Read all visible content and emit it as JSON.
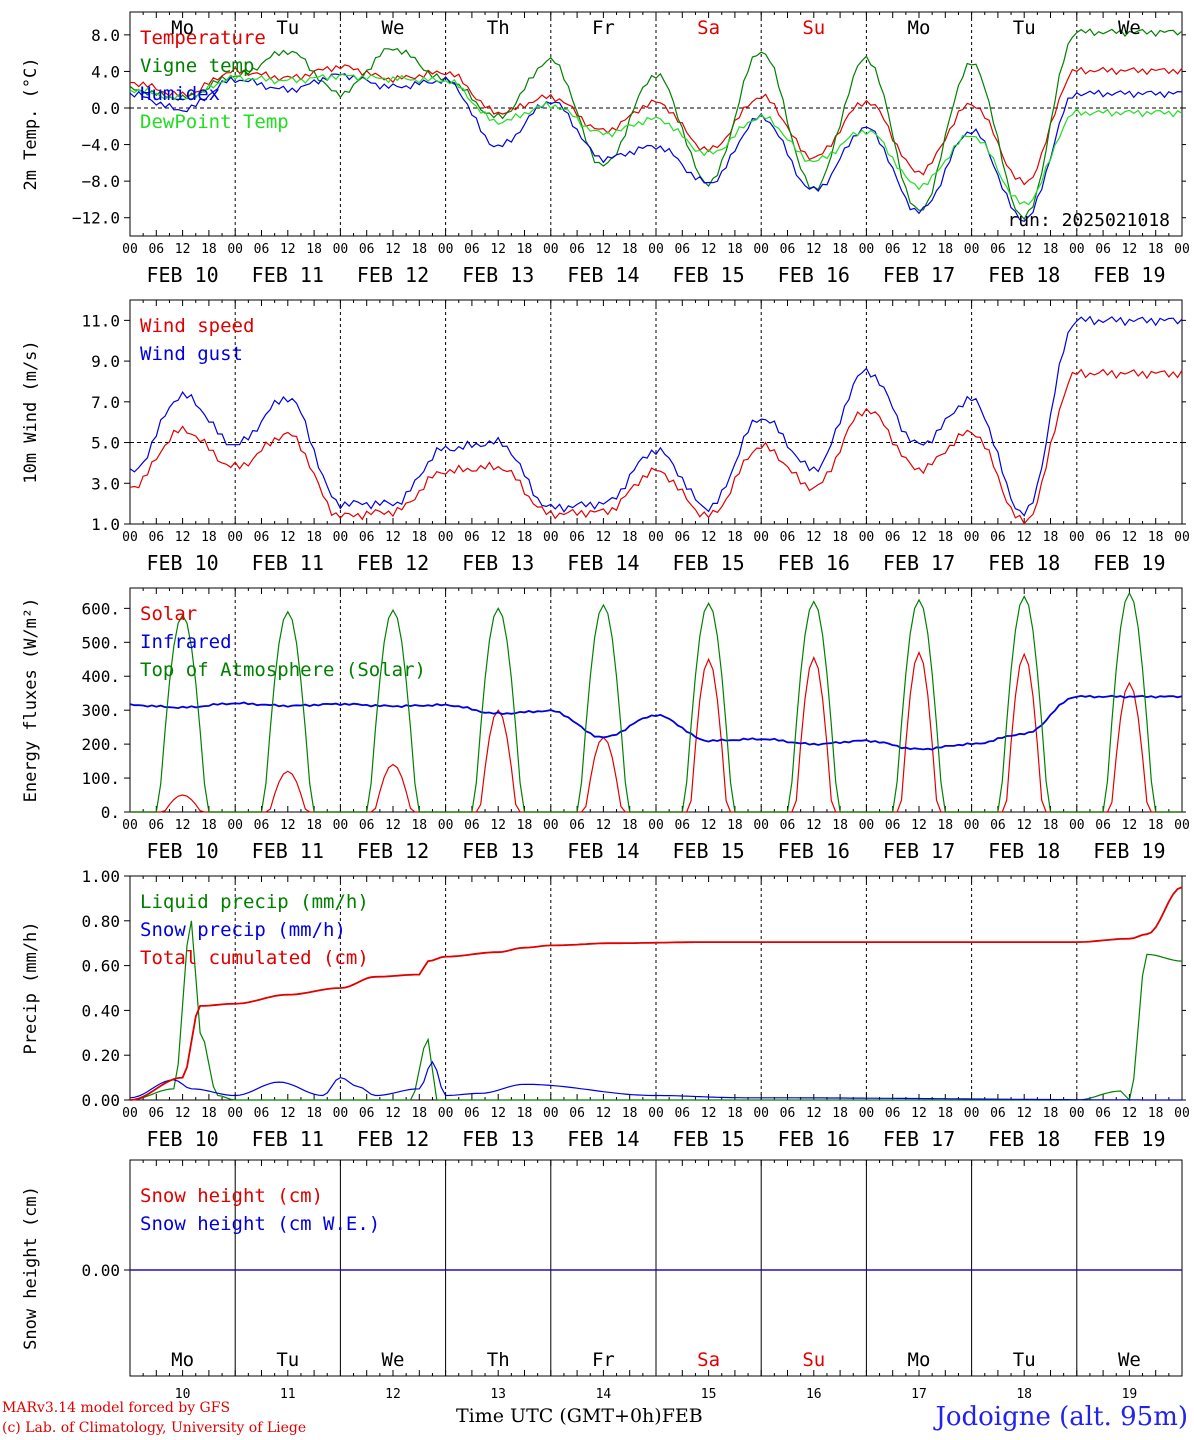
{
  "colors": {
    "red": "#e00000",
    "green": "#008000",
    "blue": "#0000e0",
    "lightgreen": "#22dd22",
    "grey": "#444444",
    "weekend": "#e00000"
  },
  "days": [
    {
      "abbr": "Mo",
      "date": "FEB 10",
      "num": "10",
      "weekend": false
    },
    {
      "abbr": "Tu",
      "date": "FEB 11",
      "num": "11",
      "weekend": false
    },
    {
      "abbr": "We",
      "date": "FEB 12",
      "num": "12",
      "weekend": false
    },
    {
      "abbr": "Th",
      "date": "FEB 13",
      "num": "13",
      "weekend": false
    },
    {
      "abbr": "Fr",
      "date": "FEB 14",
      "num": "14",
      "weekend": false
    },
    {
      "abbr": "Sa",
      "date": "FEB 15",
      "num": "15",
      "weekend": true
    },
    {
      "abbr": "Su",
      "date": "FEB 16",
      "num": "16",
      "weekend": true
    },
    {
      "abbr": "Mo",
      "date": "FEB 17",
      "num": "17",
      "weekend": false
    },
    {
      "abbr": "Tu",
      "date": "FEB 18",
      "num": "18",
      "weekend": false
    },
    {
      "abbr": "We",
      "date": "FEB 19",
      "num": "19",
      "weekend": false
    }
  ],
  "hour_ticks": [
    "00",
    "06",
    "12",
    "18"
  ],
  "footer": {
    "model": "MARv3.14 model forced by GFS",
    "lab": "(c) Lab. of Climatology, University of Liege",
    "xlabel": "Time UTC (GMT+0h)",
    "month": "FEB",
    "station": "Jodoigne (alt. 95m)"
  },
  "chart_data": [
    {
      "type": "line",
      "ylabel": "2m Temp. (°C)",
      "ylim": [
        -14,
        10.5
      ],
      "yticks": [
        -12.0,
        -8.0,
        -4.0,
        0.0,
        4.0,
        8.0
      ],
      "ytick_labels": [
        "−12.0",
        "−8.0",
        "−4.0",
        "0.0",
        "4.0",
        "8.0"
      ],
      "dashed_y": 0,
      "annotation": "run: 2025021018",
      "series": [
        {
          "name": "Temperature",
          "color": "red",
          "x": [
            0,
            12,
            24,
            36,
            48,
            60,
            72,
            84,
            96,
            108,
            120,
            132,
            144,
            156,
            168,
            180,
            192,
            204,
            216
          ],
          "y": [
            2.8,
            1.4,
            4.0,
            3.3,
            4.5,
            3.2,
            3.9,
            -0.5,
            1.2,
            -2.5,
            0.6,
            -4.6,
            1.2,
            -5.4,
            0.7,
            -7.0,
            0.4,
            -8.2,
            4.1
          ]
        },
        {
          "name": "Vigne temp",
          "color": "green",
          "x": [
            0,
            12,
            24,
            36,
            48,
            60,
            72,
            84,
            96,
            108,
            120,
            132,
            144,
            156,
            168,
            180,
            192,
            204,
            216
          ],
          "y": [
            2.0,
            1.1,
            3.5,
            6.2,
            1.6,
            6.5,
            3.1,
            -1.0,
            5.2,
            -6.3,
            3.6,
            -8.2,
            6.2,
            -8.8,
            5.4,
            -11.3,
            4.8,
            -12.0,
            8.3
          ]
        },
        {
          "name": "Humidex",
          "color": "blue",
          "x": [
            0,
            12,
            24,
            36,
            48,
            60,
            72,
            84,
            96,
            108,
            120,
            132,
            144,
            156,
            168,
            180,
            192,
            204,
            216
          ],
          "y": [
            1.5,
            -0.2,
            3.1,
            2.0,
            3.6,
            2.3,
            3.0,
            -4.2,
            0.7,
            -5.5,
            -4.2,
            -8.2,
            -1.0,
            -9.0,
            -2.2,
            -11.3,
            -2.5,
            -12.2,
            1.6
          ]
        },
        {
          "name": "DewPoint Temp",
          "color": "lightgreen",
          "x": [
            0,
            12,
            24,
            36,
            48,
            60,
            72,
            84,
            96,
            108,
            120,
            132,
            144,
            156,
            168,
            180,
            192,
            204,
            216
          ],
          "y": [
            2.0,
            1.0,
            3.3,
            3.0,
            3.5,
            3.2,
            3.0,
            -1.5,
            0.3,
            -2.8,
            -1.2,
            -5.0,
            -1.0,
            -5.8,
            -2.5,
            -8.5,
            -3.0,
            -10.5,
            -0.5
          ]
        }
      ]
    },
    {
      "type": "line",
      "ylabel": "10m Wind (m/s)",
      "ylim": [
        1,
        12
      ],
      "yticks": [
        1.0,
        3.0,
        5.0,
        7.0,
        9.0,
        11.0
      ],
      "ytick_labels": [
        "1.0",
        "3.0",
        "5.0",
        "7.0",
        "9.0",
        "11.0"
      ],
      "dashed_y": 5,
      "series": [
        {
          "name": "Wind speed",
          "color": "red",
          "x": [
            0,
            12,
            24,
            36,
            48,
            60,
            72,
            84,
            96,
            108,
            120,
            132,
            144,
            156,
            168,
            180,
            192,
            204,
            216
          ],
          "y": [
            2.8,
            5.6,
            3.8,
            5.4,
            1.4,
            1.6,
            3.6,
            3.8,
            1.5,
            1.6,
            3.6,
            1.4,
            4.8,
            2.8,
            6.6,
            3.7,
            5.5,
            1.1,
            8.4
          ]
        },
        {
          "name": "Wind gust",
          "color": "blue",
          "x": [
            0,
            12,
            24,
            36,
            48,
            60,
            72,
            84,
            96,
            108,
            120,
            132,
            144,
            156,
            168,
            180,
            192,
            204,
            216
          ],
          "y": [
            3.5,
            7.3,
            4.9,
            7.2,
            2.0,
            2.0,
            4.7,
            5.0,
            1.8,
            2.0,
            4.6,
            1.8,
            6.2,
            3.7,
            8.5,
            4.9,
            7.1,
            1.5,
            11.0
          ]
        }
      ]
    },
    {
      "type": "line",
      "ylabel": "Energy fluxes (W/m²)",
      "ylim": [
        0,
        660
      ],
      "yticks": [
        0,
        100,
        200,
        300,
        400,
        500,
        600
      ],
      "ytick_labels": [
        "0.",
        "100.",
        "200.",
        "300.",
        "400.",
        "500.",
        "600."
      ],
      "series": [
        {
          "name": "Solar",
          "color": "red",
          "peaks": [
            50,
            120,
            140,
            300,
            220,
            450,
            455,
            470,
            465,
            380
          ]
        },
        {
          "name": "Infrared",
          "color": "blue",
          "x": [
            0,
            12,
            24,
            36,
            48,
            60,
            72,
            84,
            96,
            108,
            120,
            132,
            144,
            156,
            168,
            180,
            192,
            204,
            216
          ],
          "y": [
            315,
            308,
            320,
            313,
            318,
            312,
            315,
            290,
            298,
            220,
            285,
            210,
            215,
            200,
            210,
            185,
            200,
            230,
            340
          ]
        },
        {
          "name": "Top of Atmosphere (Solar)",
          "color": "green",
          "peaks": [
            580,
            590,
            595,
            600,
            610,
            615,
            620,
            625,
            635,
            645
          ]
        }
      ]
    },
    {
      "type": "line",
      "ylabel": "Precip (mm/h)",
      "ylim": [
        0,
        1.0
      ],
      "yticks": [
        0,
        0.2,
        0.4,
        0.6,
        0.8,
        1.0
      ],
      "ytick_labels": [
        "0.00",
        "0.20",
        "0.40",
        "0.60",
        "0.80",
        "1.00"
      ],
      "series": [
        {
          "name": "Liquid precip (mm/h)",
          "color": "green",
          "x": [
            0,
            10,
            14,
            16,
            20,
            24,
            48,
            64,
            68,
            70,
            80,
            216,
            226,
            228,
            232,
            240
          ],
          "y": [
            0,
            0.05,
            0.8,
            0.3,
            0.02,
            0,
            0,
            0,
            0.27,
            0,
            0,
            0,
            0.04,
            0,
            0.65,
            0.62
          ]
        },
        {
          "name": "Snow precip (mm/h)",
          "color": "blue",
          "x": [
            0,
            10,
            14,
            24,
            34,
            44,
            48,
            52,
            56,
            66,
            69,
            72,
            80,
            90,
            120,
            140,
            240
          ],
          "y": [
            0.01,
            0.09,
            0.05,
            0.02,
            0.08,
            0.02,
            0.1,
            0.06,
            0.02,
            0.05,
            0.17,
            0.02,
            0.03,
            0.07,
            0.02,
            0.01,
            0.0
          ]
        },
        {
          "name": "Total cumulated (cm)",
          "color": "red",
          "x": [
            0,
            12,
            16,
            24,
            36,
            48,
            56,
            66,
            68,
            72,
            84,
            90,
            96,
            110,
            132,
            216,
            228,
            232,
            240
          ],
          "y": [
            0,
            0.1,
            0.42,
            0.43,
            0.47,
            0.5,
            0.55,
            0.56,
            0.62,
            0.64,
            0.66,
            0.68,
            0.69,
            0.7,
            0.705,
            0.705,
            0.72,
            0.74,
            0.95
          ]
        }
      ]
    },
    {
      "type": "line",
      "ylabel": "Snow height (cm)",
      "ytick_labels": [
        "0.00"
      ],
      "series": [
        {
          "name": "Snow height (cm)",
          "color": "red",
          "x": [
            0,
            240
          ],
          "y": [
            0,
            0
          ]
        },
        {
          "name": "Snow height (cm W.E.)",
          "color": "blue",
          "x": [
            0,
            240
          ],
          "y": [
            0,
            0
          ]
        }
      ]
    }
  ]
}
